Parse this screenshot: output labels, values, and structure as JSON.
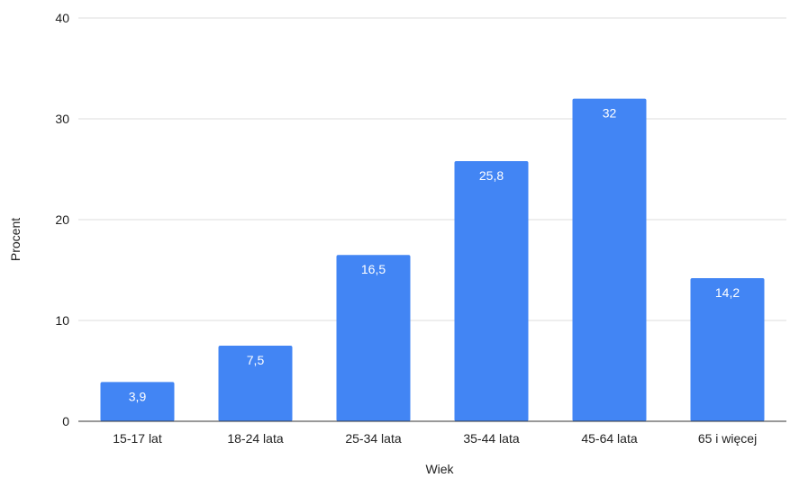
{
  "chart_data": {
    "type": "bar",
    "title": "",
    "xlabel": "Wiek",
    "ylabel": "Procent",
    "categories": [
      "15-17 lat",
      "18-24 lata",
      "25-34 lata",
      "35-44 lata",
      "45-64 lata",
      "65 i więcej"
    ],
    "values": [
      3.9,
      7.5,
      16.5,
      25.8,
      32,
      14.2
    ],
    "data_labels": [
      "3,9",
      "7,5",
      "16,5",
      "25,8",
      "32",
      "14,2"
    ],
    "ylim": [
      0,
      40
    ],
    "yticks": [
      0,
      10,
      20,
      30,
      40
    ],
    "grid": true,
    "legend": "none",
    "colors": {
      "bar": "#4285f4",
      "grid": "#dddddd",
      "axis": "#333333",
      "text": "#222222",
      "data_label": "#ffffff"
    }
  }
}
